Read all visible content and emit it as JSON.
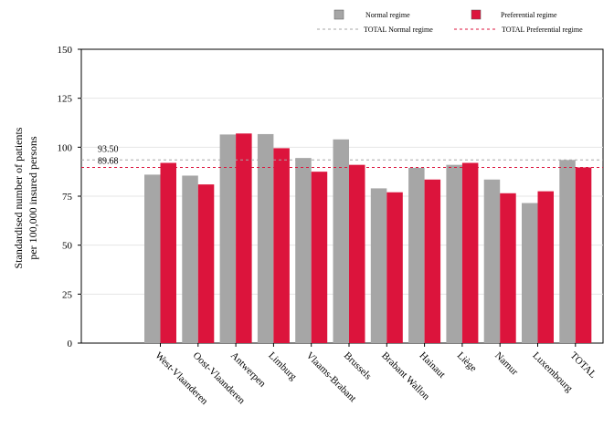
{
  "chart_data": {
    "type": "bar",
    "title": "",
    "xlabel": "",
    "ylabel": [
      "Standardised number of patients",
      "per 100,000 insured persons"
    ],
    "ylim": [
      0,
      150
    ],
    "yticks": [
      "0",
      "25",
      "50",
      "75",
      "100",
      "125",
      "150"
    ],
    "grid": "horizontal",
    "legend_position": "top-right",
    "categories": [
      "West-Vlaanderen",
      "Oost-Vlaanderen",
      "Antwerpen",
      "Limburg",
      "Vlaams-Brabant",
      "Brussels",
      "Brabant Wallon",
      "Hainaut",
      "Liège",
      "Namur",
      "Luxembourg",
      "TOTAL"
    ],
    "series": [
      {
        "name": "Normal regime",
        "color": "#a6a6a6",
        "values": [
          86,
          85.5,
          106.5,
          106.7,
          94.5,
          104,
          79,
          89.5,
          91,
          83.5,
          71.5,
          93.5
        ]
      },
      {
        "name": "Preferential regime",
        "color": "#dc143c",
        "values": [
          92,
          81,
          107,
          99.5,
          87.5,
          91,
          77,
          83.5,
          92,
          76.5,
          77.5,
          89.68
        ]
      }
    ],
    "reference_lines": [
      {
        "name": "TOTAL Normal regime",
        "value": 93.5,
        "label": "93.50",
        "color": "#a6a6a6",
        "style": "dashed"
      },
      {
        "name": "TOTAL Preferential regime",
        "value": 89.68,
        "label": "89.68",
        "color": "#dc143c",
        "style": "dashed"
      }
    ]
  }
}
